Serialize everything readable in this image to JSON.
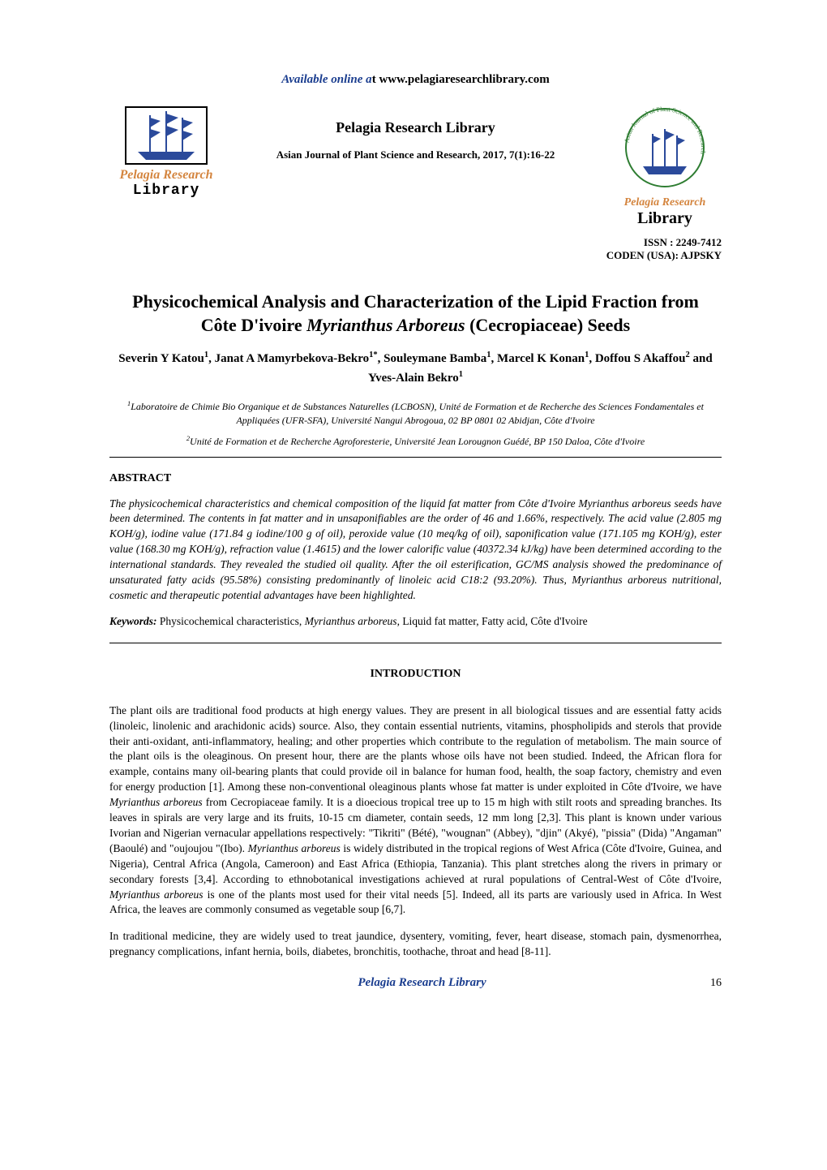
{
  "header": {
    "available_prefix": "Available online a",
    "available_t": "t ",
    "url": "www.pelagiaresearchlibrary.com",
    "publisher": "Pelagia Research Library",
    "journal_citation": "Asian Journal of Plant Science and Research, 2017, 7(1):16-22",
    "logo_left_line1": "Pelagia Research",
    "logo_left_line2": "Library",
    "logo_right_line1": "Pelagia Research",
    "logo_right_line2": "Library",
    "logo_right_circle": "Asian Journal of Plant Science and Research",
    "issn": "ISSN : 2249-7412",
    "coden": "CODEN (USA): AJPSKY"
  },
  "title": {
    "line1": "Physicochemical Analysis and Characterization of the Lipid Fraction from",
    "line2_pre": "Côte D'ivoire ",
    "line2_italic": "Myrianthus Arboreus",
    "line2_post": " (Cecropiaceae) Seeds"
  },
  "authors_html": "Severin Y Katou<sup>1</sup>, Janat A Mamyrbekova-Bekro<sup>1*</sup>, Souleymane Bamba<sup>1</sup>, Marcel K Konan<sup>1</sup>, Doffou S Akaffou<sup>2</sup> and Yves-Alain Bekro<sup>1</sup>",
  "affiliations": [
    "<sup>1</sup>Laboratoire de Chimie Bio Organique et de Substances Naturelles (LCBOSN), Unité de Formation et de Recherche des Sciences Fondamentales et Appliquées (UFR-SFA), Université Nangui Abrogoua, 02 BP 0801 02 Abidjan, Côte d'Ivoire",
    "<sup>2</sup>Unité de Formation et de Recherche Agroforesterie, Université Jean Lorougnon Guédé, BP 150 Daloa, Côte d'Ivoire"
  ],
  "abstract": {
    "heading": "ABSTRACT",
    "body": "The physicochemical characteristics and chemical composition of the liquid fat matter from Côte d'Ivoire Myrianthus arboreus seeds have been determined. The contents in fat matter and in unsaponifiables are the order of 46 and 1.66%, respectively. The acid value (2.805 mg KOH/g), iodine value (171.84 g iodine/100 g of oil), peroxide value (10 meq/kg of oil), saponification value (171.105 mg KOH/g), ester value (168.30 mg KOH/g), refraction value (1.4615) and the lower calorific value (40372.34 kJ/kg) have been determined according to the international standards. They revealed the studied oil quality. After the oil esterification, GC/MS analysis showed the predominance of unsaturated fatty acids (95.58%) consisting predominantly of linoleic acid C18:2 (93.20%). Thus, Myrianthus arboreus nutritional, cosmetic and therapeutic potential advantages have been highlighted.",
    "keywords_label": "Keywords:",
    "keywords_plain1": " Physicochemical characteristics, ",
    "keywords_italic": "Myrianthus arboreus",
    "keywords_plain2": ", Liquid fat matter, Fatty acid, Côte d'Ivoire"
  },
  "introduction": {
    "heading": "INTRODUCTION",
    "para1": "The plant oils are traditional food products at high energy values. They are present in all biological tissues and are essential fatty acids (linoleic, linolenic and arachidonic acids) source. Also, they contain essential nutrients, vitamins, phospholipids and sterols that provide their anti-oxidant, anti-inflammatory, healing; and other properties which contribute to the regulation of metabolism. The main source of the plant oils is the oleaginous. On present hour, there are the plants whose oils have not been studied. Indeed, the African flora for example, contains many oil-bearing plants that could provide oil in balance for human food, health, the soap factory, chemistry and even for energy production [1]. Among these non-conventional oleaginous plants whose fat matter is under exploited in Côte d'Ivoire, we have <span class=\"italic\">Myrianthus arboreus</span> from Cecropiaceae family. It is a dioecious tropical tree up to 15 m high with stilt roots and spreading branches. Its leaves in spirals are very large and its fruits, 10-15 cm diameter, contain seeds, 12 mm long [2,3]. This plant is known under various Ivorian and Nigerian vernacular appellations respectively: \"Tikriti\" (Bété), \"wougnan\" (Abbey), \"djin\" (Akyé), \"pissia\" (Dida) \"Angaman\" (Baoulé) and \"oujoujou \"(Ibo). <span class=\"italic\">Myrianthus arboreus</span> is widely distributed in the tropical regions of West Africa (Côte d'Ivoire, Guinea, and Nigeria), Central Africa (Angola, Cameroon) and East Africa (Ethiopia, Tanzania). This plant stretches along the rivers in primary or secondary forests [3,4]. According to ethnobotanical investigations achieved at rural populations of Central-West of Côte d'Ivoire, <span class=\"italic\">Myrianthus arboreus</span> is one of the plants most used for their vital needs [5]. Indeed, all its parts are variously used in Africa. In West Africa, the leaves are commonly consumed as vegetable soup [6,7].",
    "para2": "In traditional medicine, they are widely used to treat jaundice, dysentery, vomiting, fever, heart disease, stomach pain, dysmenorrhea, pregnancy complications, infant hernia, boils, diabetes, bronchitis, toothache, throat and head [8-11]."
  },
  "footer": {
    "text": "Pelagia Research Library",
    "page": "16"
  },
  "colors": {
    "link_blue": "#1a3d8f",
    "logo_orange": "#d4853f",
    "logo_green": "#2e7d32",
    "flag_blue": "#2b4a9b",
    "black": "#000000",
    "white": "#ffffff"
  }
}
